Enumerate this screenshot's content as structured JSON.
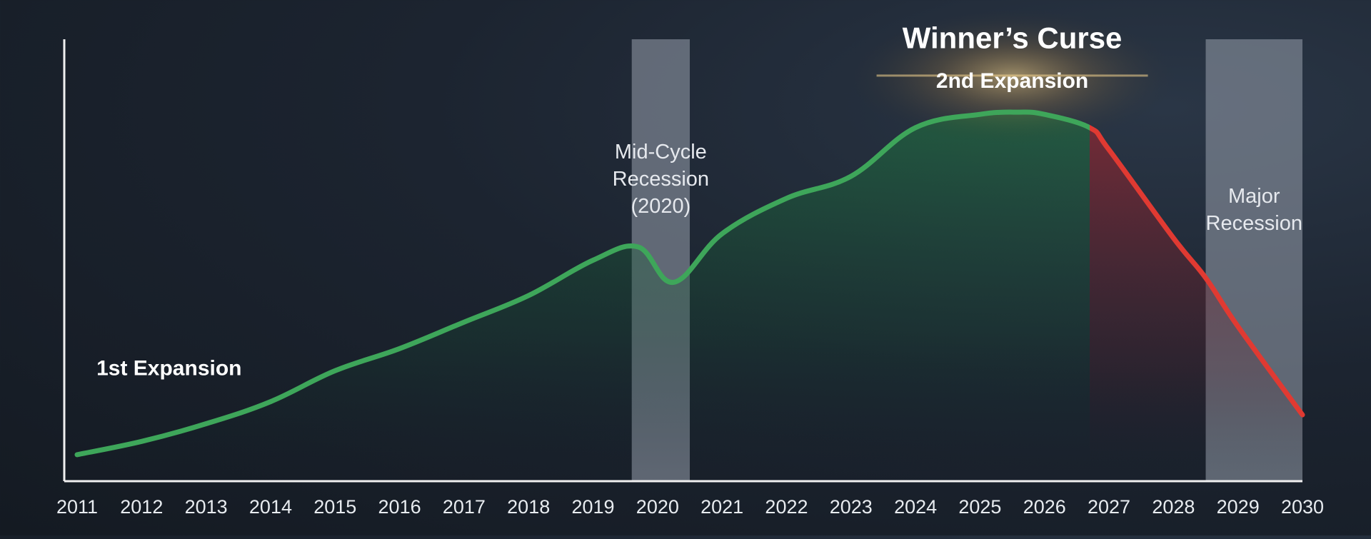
{
  "chart_data": {
    "type": "line",
    "title": "",
    "xlabel": "",
    "ylabel": "",
    "x": [
      2011,
      2012,
      2013,
      2014,
      2015,
      2016,
      2017,
      2018,
      2019,
      2019.7,
      2020.25,
      2021,
      2022,
      2023,
      2024,
      2025,
      2025.6,
      2026,
      2026.7,
      2027,
      2028,
      2028.5,
      2029,
      2030
    ],
    "y": [
      6,
      9,
      13,
      18,
      25,
      30,
      36,
      42,
      50,
      53,
      45,
      56,
      64,
      69,
      80,
      83,
      83.5,
      83,
      80,
      75,
      55,
      46,
      35,
      15
    ],
    "xlim": [
      2011,
      2030
    ],
    "ylim": [
      0,
      100
    ],
    "tick_labels": [
      "2011",
      "2012",
      "2013",
      "2014",
      "2015",
      "2016",
      "2017",
      "2018",
      "2019",
      "2020",
      "2021",
      "2022",
      "2023",
      "2024",
      "2025",
      "2026",
      "2027",
      "2028",
      "2029",
      "2030"
    ],
    "segments": [
      {
        "name": "",
        "from": 2011,
        "to": 2026.7,
        "color": "#3ea65a"
      },
      {
        "name": "",
        "from": 2026.7,
        "to": 2030,
        "color": "#e03a32"
      }
    ],
    "shaded_regions": [
      {
        "from": 2019.6,
        "to": 2020.5,
        "label": [
          "Mid-Cycle",
          "Recession",
          "(2020)"
        ],
        "label_y": 73
      },
      {
        "from": 2028.5,
        "to": 2030,
        "label": [
          "Major",
          "Recession"
        ],
        "label_y": 63
      }
    ],
    "annotations": {
      "first_expansion": {
        "text": "1st Expansion",
        "x": 2011.3,
        "y": 24
      },
      "winners_curse": {
        "text": "Winner’s Curse",
        "x": 2025.5,
        "y": 98
      },
      "second_expansion": {
        "text": "2nd Expansion",
        "x": 2025.5,
        "y": 89
      }
    },
    "grid": false,
    "legend": "none",
    "colors": {
      "line_up": "#3ea65a",
      "line_down": "#e03a32",
      "fill_up": "#1f6a3c",
      "fill_down": "#8a2530",
      "band": "#8a93a0",
      "axis": "#f0f0f0",
      "glow": "#f3c26a"
    }
  }
}
